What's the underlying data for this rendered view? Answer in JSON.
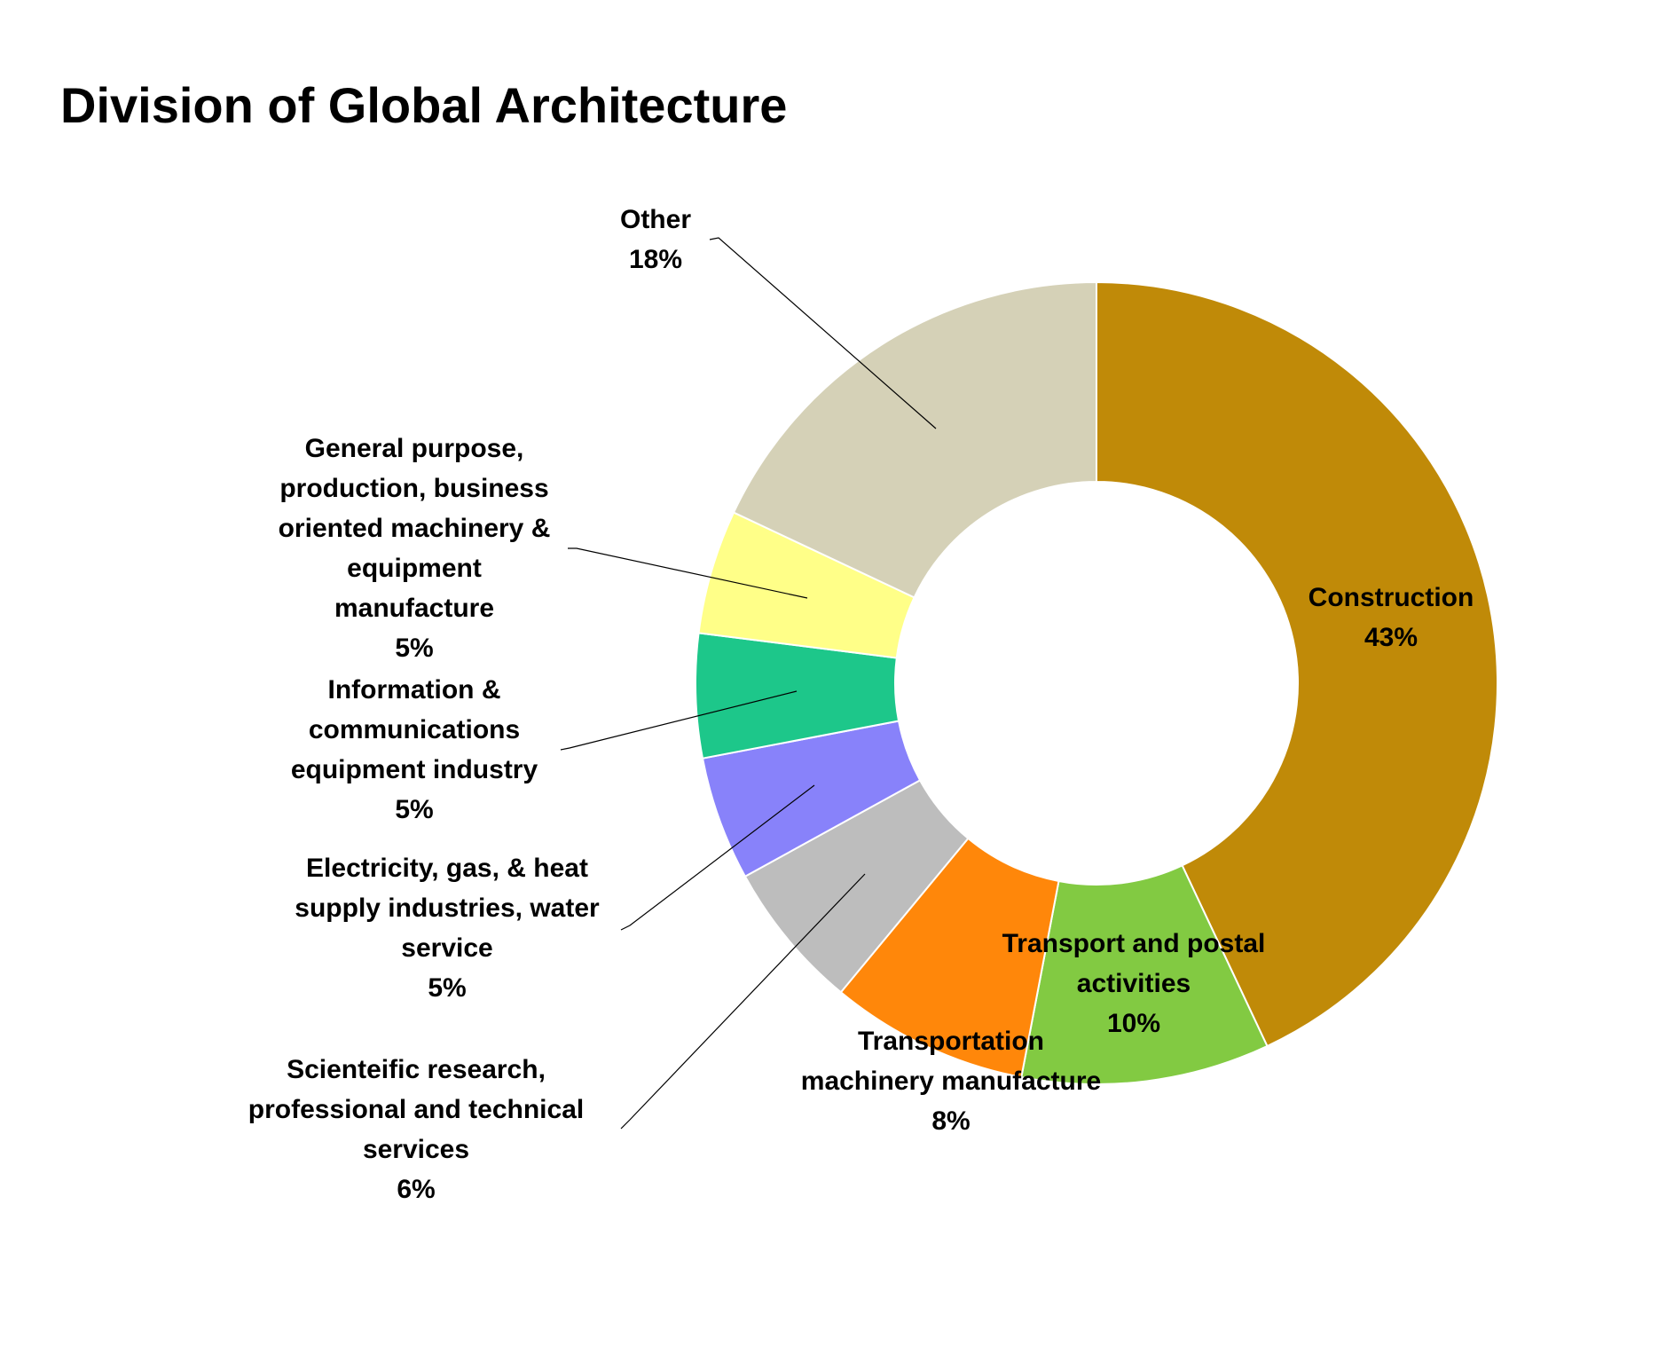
{
  "chart_data": {
    "type": "pie",
    "variant": "donut",
    "title": "Division of Global Architecture",
    "slices": [
      {
        "label_lines": [
          "Construction"
        ],
        "value_label": "43%",
        "value": 43,
        "color": "#C08A08"
      },
      {
        "label_lines": [
          "Transport and postal",
          "activities"
        ],
        "value_label": "10%",
        "value": 10,
        "color": "#82CA42"
      },
      {
        "label_lines": [
          "Transportation",
          "machinery manufacture"
        ],
        "value_label": "8%",
        "value": 8,
        "color": "#FF870A"
      },
      {
        "label_lines": [
          "Scienteific research,",
          "professional and technical",
          "services"
        ],
        "value_label": "6%",
        "value": 6,
        "color": "#BDBDBD"
      },
      {
        "label_lines": [
          "Electricity, gas, & heat",
          "supply industries, water",
          "service"
        ],
        "value_label": "5%",
        "value": 5,
        "color": "#8882FA"
      },
      {
        "label_lines": [
          "Information &",
          "communications",
          "equipment industry"
        ],
        "value_label": "5%",
        "value": 5,
        "color": "#1DC78A"
      },
      {
        "label_lines": [
          "General purpose,",
          "production, business",
          "oriented machinery &",
          "equipment",
          "manufacture"
        ],
        "value_label": "5%",
        "value": 5,
        "color": "#FFFF88"
      },
      {
        "label_lines": [
          "Other"
        ],
        "value_label": "18%",
        "value": 18,
        "color": "#D5D1B7"
      }
    ]
  }
}
